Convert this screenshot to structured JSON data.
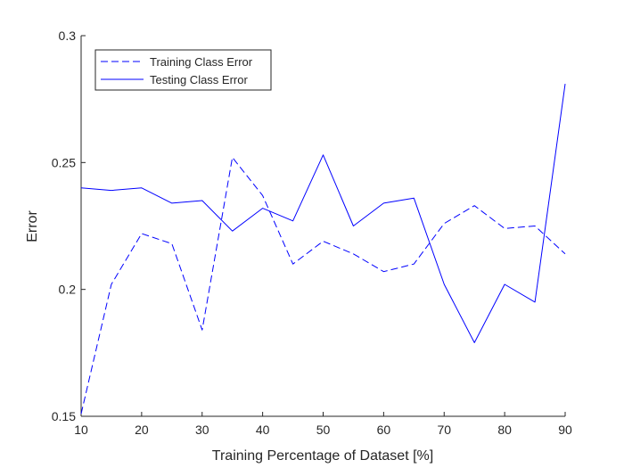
{
  "chart_data": {
    "type": "line",
    "xlabel": "Training Percentage of Dataset [%]",
    "ylabel": "Error",
    "xlim": [
      10,
      90
    ],
    "ylim": [
      0.15,
      0.3
    ],
    "xticks": [
      "10",
      "20",
      "30",
      "40",
      "50",
      "60",
      "70",
      "80",
      "90"
    ],
    "yticks": [
      "0.15",
      "0.2",
      "0.25",
      "0.3"
    ],
    "grid": false,
    "legend_position": "top-left",
    "x": [
      10,
      15,
      20,
      25,
      30,
      35,
      40,
      45,
      50,
      55,
      60,
      65,
      70,
      75,
      80,
      85,
      90
    ],
    "series": [
      {
        "name": "Training Class Error",
        "style": "dashed",
        "color": "#0000ff",
        "values": [
          0.151,
          0.202,
          0.222,
          0.218,
          0.184,
          0.252,
          0.237,
          0.21,
          0.219,
          0.214,
          0.207,
          0.21,
          0.226,
          0.233,
          0.224,
          0.225,
          0.214
        ]
      },
      {
        "name": "Testing Class Error",
        "style": "solid",
        "color": "#0000ff",
        "values": [
          0.24,
          0.239,
          0.24,
          0.234,
          0.235,
          0.223,
          0.232,
          0.227,
          0.253,
          0.225,
          0.234,
          0.236,
          0.202,
          0.179,
          0.202,
          0.195,
          0.281
        ]
      }
    ]
  }
}
